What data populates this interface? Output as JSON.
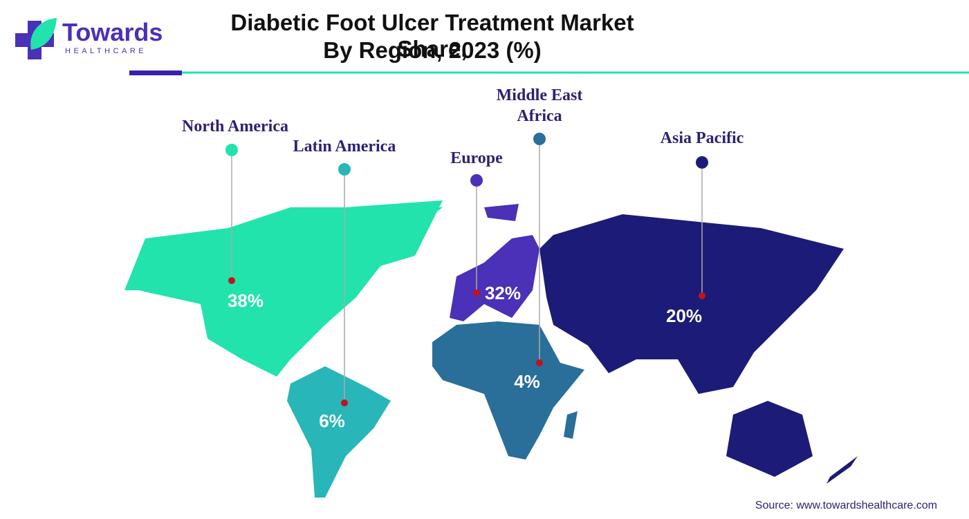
{
  "logo": {
    "name": "Towards",
    "tagline": "HEALTHCARE"
  },
  "chart_data": {
    "type": "map",
    "title": [
      "Diabetic Foot Ulcer Treatment Market Share,",
      "By Region, 2023 (%)"
    ],
    "categories": [
      "North America",
      "Latin America",
      "Europe",
      "Middle East Africa",
      "Asia Pacific"
    ],
    "values": [
      38,
      6,
      32,
      4,
      20
    ],
    "value_labels": [
      "38%",
      "6%",
      "32%",
      "4%",
      "20%"
    ],
    "colors": [
      "#22e3ab",
      "#28b6b8",
      "#4b30b8",
      "#2a6e9a",
      "#1d1b78"
    ],
    "source": "Source: www.towardshealthcare.com"
  }
}
